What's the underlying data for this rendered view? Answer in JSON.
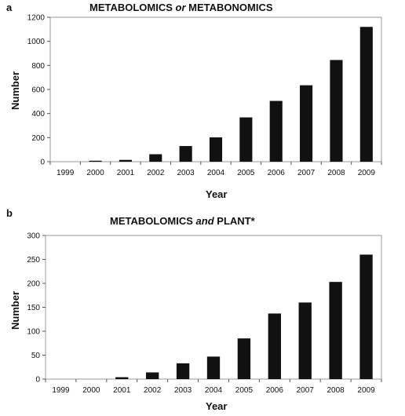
{
  "chart_data": [
    {
      "type": "bar",
      "panel": "a",
      "title_parts": [
        "METABOLOMICS",
        "or",
        "METABONOMICS"
      ],
      "xlabel": "Year",
      "ylabel": "Number",
      "categories": [
        "1999",
        "2000",
        "2001",
        "2002",
        "2003",
        "2004",
        "2005",
        "2006",
        "2007",
        "2008",
        "2009"
      ],
      "values": [
        0,
        8,
        15,
        62,
        130,
        202,
        368,
        505,
        635,
        845,
        1120
      ],
      "ylim": [
        0,
        1200
      ],
      "yticks": [
        0,
        200,
        400,
        600,
        800,
        1000,
        1200
      ],
      "grid": false,
      "legend": "none",
      "bar_color": "#111111"
    },
    {
      "type": "bar",
      "panel": "b",
      "title_parts": [
        "METABOLOMICS",
        "and",
        "PLANT*"
      ],
      "xlabel": "Year",
      "ylabel": "Number",
      "categories": [
        "1999",
        "2000",
        "2001",
        "2002",
        "2003",
        "2004",
        "2005",
        "2006",
        "2007",
        "2008",
        "2009"
      ],
      "values": [
        0,
        0,
        4,
        14,
        33,
        47,
        85,
        137,
        160,
        203,
        260
      ],
      "ylim": [
        0,
        300
      ],
      "yticks": [
        0,
        50,
        100,
        150,
        200,
        250,
        300
      ],
      "grid": false,
      "legend": "none",
      "bar_color": "#111111"
    }
  ]
}
